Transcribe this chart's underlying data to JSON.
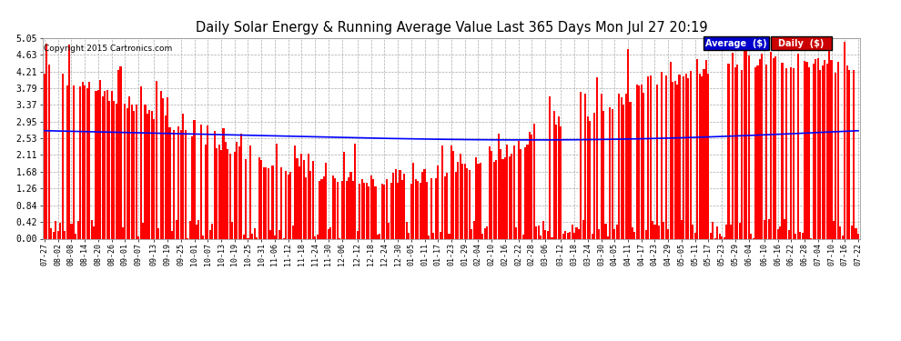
{
  "title": "Daily Solar Energy & Running Average Value Last 365 Days Mon Jul 27 20:19",
  "copyright": "Copyright 2015 Cartronics.com",
  "bar_color": "#FF0000",
  "avg_color": "#0000FF",
  "background_color": "#FFFFFF",
  "plot_bg_color": "#FFFFFF",
  "grid_color": "#AAAAAA",
  "ylim": [
    0.0,
    5.05
  ],
  "yticks": [
    0.0,
    0.42,
    0.84,
    1.26,
    1.68,
    2.11,
    2.53,
    2.95,
    3.37,
    3.79,
    4.21,
    4.63,
    5.05
  ],
  "legend_avg_bg": "#0000CC",
  "legend_daily_bg": "#CC0000",
  "x_labels": [
    "07-27",
    "08-02",
    "08-08",
    "08-14",
    "08-20",
    "08-26",
    "09-01",
    "09-07",
    "09-13",
    "09-19",
    "09-25",
    "10-01",
    "10-07",
    "10-13",
    "10-19",
    "10-25",
    "10-31",
    "11-06",
    "11-12",
    "11-18",
    "11-24",
    "11-30",
    "12-06",
    "12-12",
    "12-18",
    "12-24",
    "12-30",
    "01-05",
    "01-11",
    "01-17",
    "01-23",
    "01-29",
    "02-04",
    "02-10",
    "02-16",
    "02-22",
    "02-28",
    "03-06",
    "03-12",
    "03-18",
    "03-24",
    "03-30",
    "04-05",
    "04-11",
    "04-17",
    "04-23",
    "04-29",
    "05-05",
    "05-11",
    "05-17",
    "05-23",
    "05-29",
    "06-04",
    "06-10",
    "06-16",
    "06-22",
    "06-28",
    "07-04",
    "07-10",
    "07-16",
    "07-22"
  ],
  "n_days": 365
}
